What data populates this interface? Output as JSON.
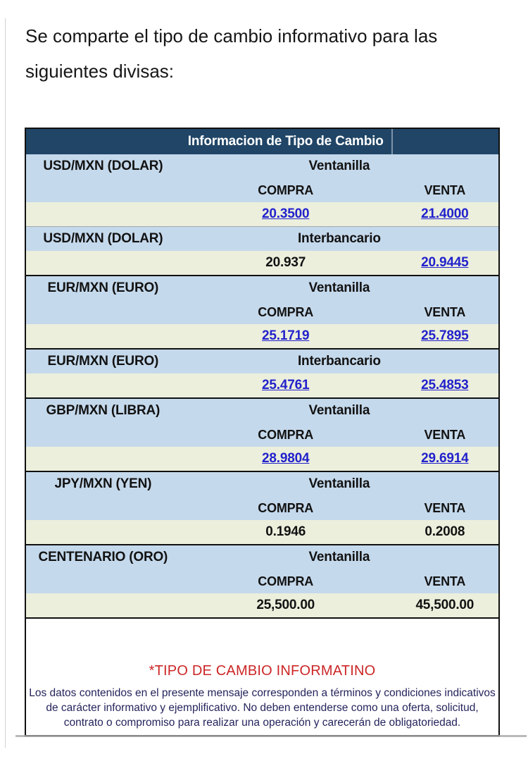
{
  "intro": {
    "line1": "Se comparte el tipo de cambio informativo para las",
    "line2": "siguientes divisas:"
  },
  "table": {
    "title": "Informacion de Tipo de Cambio",
    "sections": [
      {
        "currency": "USD/MXN (DOLAR)",
        "market": "Ventanilla",
        "compra_header": "COMPRA",
        "venta_header": "VENTA",
        "compra": "20.3500",
        "venta": "21.4000"
      },
      {
        "currency": "USD/MXN (DOLAR)",
        "market": "Interbancario",
        "compra": "20.937",
        "venta": "20.9445"
      },
      {
        "currency": "EUR/MXN (EURO)",
        "market": "Ventanilla",
        "compra_header": "COMPRA",
        "venta_header": "VENTA",
        "compra": "25.1719",
        "venta": "25.7895"
      },
      {
        "currency": "EUR/MXN (EURO)",
        "market": "Interbancario",
        "compra": "25.4761",
        "venta": "25.4853"
      },
      {
        "currency": "GBP/MXN (LIBRA)",
        "market": "Ventanilla",
        "compra_header": "COMPRA",
        "venta_header": "VENTA",
        "compra": "28.9804",
        "venta": "29.6914"
      },
      {
        "currency": "JPY/MXN (YEN)",
        "market": "Ventanilla",
        "compra_header": "COMPRA",
        "venta_header": "VENTA",
        "compra": "0.1946",
        "venta": "0.2008"
      },
      {
        "currency": "CENTENARIO (ORO)",
        "market": "Ventanilla",
        "compra_header": "COMPRA",
        "venta_header": "VENTA",
        "compra": "25,500.00",
        "venta": "45,500.00"
      }
    ]
  },
  "footer": {
    "title": "*TIPO DE CAMBIO INFORMATINO",
    "disclaimer": "Los datos contenidos en el presente mensaje corresponden a términos y condiciones indicativos de carácter informativo y ejemplificativo. No deben entenderse como una oferta, solicitud, contrato o compromiso para realizar una operación y carecerán de obligatoriedad."
  },
  "colors": {
    "header_bg": "#204566",
    "row_blue": "#c5d9ec",
    "row_cream": "#ecefdc",
    "link_blue": "#2222cc",
    "alert_red": "#cc2626",
    "disclaimer_navy": "#24245c",
    "border_black": "#101010"
  }
}
